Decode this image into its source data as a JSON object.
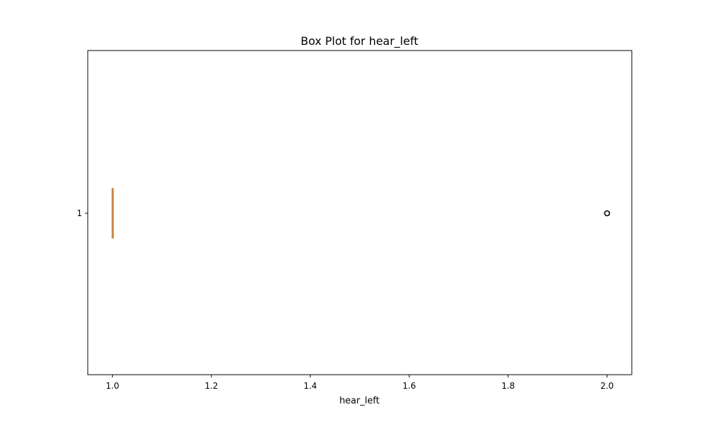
{
  "chart_data": {
    "type": "box",
    "orientation": "horizontal",
    "title": "Box Plot for hear_left",
    "xlabel": "hear_left",
    "ylabel": "",
    "xlim": [
      0.95,
      2.05
    ],
    "x_ticks": [
      1.0,
      1.2,
      1.4,
      1.6,
      1.8,
      2.0
    ],
    "x_tick_labels": [
      "1.0",
      "1.2",
      "1.4",
      "1.6",
      "1.8",
      "2.0"
    ],
    "y_tick_labels": [
      "1"
    ],
    "grid": false,
    "boxes": [
      {
        "position_label": "1",
        "whisker_low": 1.0,
        "q1": 1.0,
        "median": 1.0,
        "q3": 1.0,
        "whisker_high": 1.0,
        "outliers": [
          2.0
        ]
      }
    ],
    "colors": {
      "median": "#d08a4a",
      "box": "#000000",
      "outlier_edge": "#000000",
      "axes": "#000000"
    }
  }
}
